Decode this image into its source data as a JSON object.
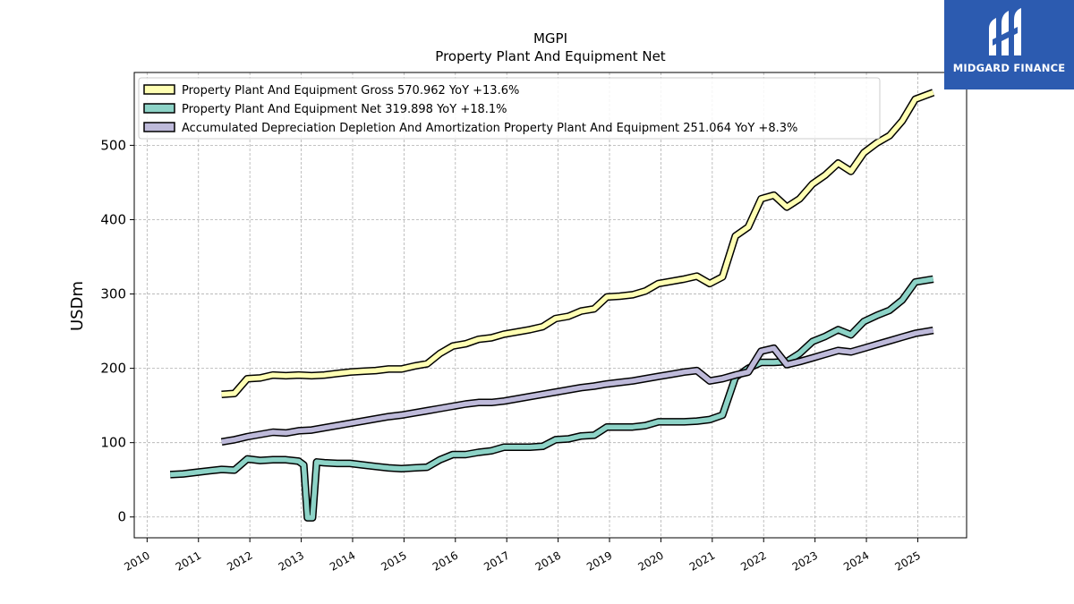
{
  "brand": {
    "name": "MIDGARD FINANCE",
    "bg": "#2c5bb0"
  },
  "chart_data": {
    "type": "line",
    "title": "MGPI",
    "subtitle": "Property Plant And Equipment Net",
    "xlabel": "",
    "ylabel": "USDm",
    "xlim": [
      2009.75,
      2025.95
    ],
    "ylim": [
      -28,
      598
    ],
    "x_ticks": [
      2010,
      2011,
      2012,
      2013,
      2014,
      2015,
      2016,
      2017,
      2018,
      2019,
      2020,
      2021,
      2022,
      2023,
      2024,
      2025
    ],
    "y_ticks": [
      0,
      100,
      200,
      300,
      400,
      500
    ],
    "grid": true,
    "legend_position": "top-left",
    "series": [
      {
        "name": "Property Plant And Equipment Gross",
        "legend": "Property Plant And Equipment Gross  570.962 YoY +13.6%",
        "color": "#ffffb3",
        "points": [
          [
            2011.45,
            165
          ],
          [
            2011.7,
            166
          ],
          [
            2011.95,
            186
          ],
          [
            2012.2,
            187
          ],
          [
            2012.45,
            191
          ],
          [
            2012.7,
            190
          ],
          [
            2012.95,
            191
          ],
          [
            2013.2,
            190
          ],
          [
            2013.45,
            191
          ],
          [
            2013.7,
            193
          ],
          [
            2013.95,
            195
          ],
          [
            2014.2,
            196
          ],
          [
            2014.45,
            197
          ],
          [
            2014.7,
            199
          ],
          [
            2014.95,
            199
          ],
          [
            2015.2,
            203
          ],
          [
            2015.45,
            206
          ],
          [
            2015.7,
            220
          ],
          [
            2015.95,
            230
          ],
          [
            2016.2,
            233
          ],
          [
            2016.45,
            239
          ],
          [
            2016.7,
            241
          ],
          [
            2016.95,
            246
          ],
          [
            2017.2,
            249
          ],
          [
            2017.45,
            252
          ],
          [
            2017.7,
            256
          ],
          [
            2017.95,
            267
          ],
          [
            2018.2,
            270
          ],
          [
            2018.45,
            277
          ],
          [
            2018.7,
            280
          ],
          [
            2018.95,
            296
          ],
          [
            2019.2,
            297
          ],
          [
            2019.45,
            299
          ],
          [
            2019.7,
            304
          ],
          [
            2019.95,
            314
          ],
          [
            2020.2,
            317
          ],
          [
            2020.45,
            320
          ],
          [
            2020.7,
            324
          ],
          [
            2020.95,
            314
          ],
          [
            2021.2,
            323
          ],
          [
            2021.45,
            378
          ],
          [
            2021.7,
            390
          ],
          [
            2021.95,
            428
          ],
          [
            2022.2,
            433
          ],
          [
            2022.45,
            417
          ],
          [
            2022.7,
            428
          ],
          [
            2022.95,
            448
          ],
          [
            2023.2,
            460
          ],
          [
            2023.45,
            476
          ],
          [
            2023.7,
            465
          ],
          [
            2023.95,
            490
          ],
          [
            2024.2,
            503
          ],
          [
            2024.45,
            513
          ],
          [
            2024.7,
            533
          ],
          [
            2024.95,
            562
          ],
          [
            2025.3,
            571
          ]
        ]
      },
      {
        "name": "Property Plant And Equipment Net",
        "legend": "Property Plant And Equipment Net  319.898 YoY +18.1%",
        "color": "#8dd3c7",
        "points": [
          [
            2010.45,
            57
          ],
          [
            2010.7,
            58
          ],
          [
            2010.95,
            60
          ],
          [
            2011.2,
            62
          ],
          [
            2011.45,
            64
          ],
          [
            2011.7,
            63
          ],
          [
            2011.95,
            78
          ],
          [
            2012.2,
            76
          ],
          [
            2012.45,
            77
          ],
          [
            2012.7,
            77
          ],
          [
            2012.95,
            75
          ],
          [
            2013.05,
            70
          ],
          [
            2013.12,
            -1
          ],
          [
            2013.22,
            -1
          ],
          [
            2013.3,
            74
          ],
          [
            2013.45,
            73
          ],
          [
            2013.7,
            72
          ],
          [
            2013.95,
            72
          ],
          [
            2014.2,
            70
          ],
          [
            2014.45,
            68
          ],
          [
            2014.7,
            66
          ],
          [
            2014.95,
            65
          ],
          [
            2015.2,
            66
          ],
          [
            2015.45,
            67
          ],
          [
            2015.7,
            77
          ],
          [
            2015.95,
            84
          ],
          [
            2016.2,
            84
          ],
          [
            2016.45,
            87
          ],
          [
            2016.7,
            89
          ],
          [
            2016.95,
            94
          ],
          [
            2017.2,
            94
          ],
          [
            2017.45,
            94
          ],
          [
            2017.7,
            95
          ],
          [
            2017.95,
            104
          ],
          [
            2018.2,
            105
          ],
          [
            2018.45,
            109
          ],
          [
            2018.7,
            110
          ],
          [
            2018.95,
            121
          ],
          [
            2019.2,
            121
          ],
          [
            2019.45,
            121
          ],
          [
            2019.7,
            123
          ],
          [
            2019.95,
            128
          ],
          [
            2020.2,
            128
          ],
          [
            2020.45,
            128
          ],
          [
            2020.7,
            129
          ],
          [
            2020.95,
            131
          ],
          [
            2021.2,
            137
          ],
          [
            2021.45,
            188
          ],
          [
            2021.7,
            200
          ],
          [
            2021.95,
            208
          ],
          [
            2022.2,
            208
          ],
          [
            2022.45,
            209
          ],
          [
            2022.7,
            220
          ],
          [
            2022.95,
            236
          ],
          [
            2023.2,
            243
          ],
          [
            2023.45,
            252
          ],
          [
            2023.7,
            245
          ],
          [
            2023.95,
            263
          ],
          [
            2024.2,
            271
          ],
          [
            2024.45,
            278
          ],
          [
            2024.7,
            292
          ],
          [
            2024.95,
            316
          ],
          [
            2025.3,
            320
          ]
        ]
      },
      {
        "name": "Accumulated Depreciation Depletion And Amortization Property Plant And Equipment",
        "legend": "Accumulated Depreciation Depletion And Amortization Property Plant And Equipment  251.064 YoY +8.3%",
        "color": "#bebada",
        "points": [
          [
            2011.45,
            101
          ],
          [
            2011.7,
            104
          ],
          [
            2011.95,
            108
          ],
          [
            2012.2,
            111
          ],
          [
            2012.45,
            114
          ],
          [
            2012.7,
            113
          ],
          [
            2012.95,
            116
          ],
          [
            2013.2,
            117
          ],
          [
            2013.45,
            120
          ],
          [
            2013.7,
            123
          ],
          [
            2013.95,
            126
          ],
          [
            2014.2,
            129
          ],
          [
            2014.45,
            132
          ],
          [
            2014.7,
            135
          ],
          [
            2014.95,
            137
          ],
          [
            2015.2,
            140
          ],
          [
            2015.45,
            143
          ],
          [
            2015.7,
            146
          ],
          [
            2015.95,
            149
          ],
          [
            2016.2,
            152
          ],
          [
            2016.45,
            154
          ],
          [
            2016.7,
            154
          ],
          [
            2016.95,
            156
          ],
          [
            2017.2,
            159
          ],
          [
            2017.45,
            162
          ],
          [
            2017.7,
            165
          ],
          [
            2017.95,
            168
          ],
          [
            2018.2,
            171
          ],
          [
            2018.45,
            174
          ],
          [
            2018.7,
            176
          ],
          [
            2018.95,
            179
          ],
          [
            2019.2,
            181
          ],
          [
            2019.45,
            183
          ],
          [
            2019.7,
            186
          ],
          [
            2019.95,
            189
          ],
          [
            2020.2,
            192
          ],
          [
            2020.45,
            195
          ],
          [
            2020.7,
            197
          ],
          [
            2020.95,
            183
          ],
          [
            2021.2,
            186
          ],
          [
            2021.45,
            191
          ],
          [
            2021.7,
            195
          ],
          [
            2021.95,
            223
          ],
          [
            2022.2,
            227
          ],
          [
            2022.45,
            205
          ],
          [
            2022.7,
            209
          ],
          [
            2022.95,
            214
          ],
          [
            2023.2,
            219
          ],
          [
            2023.45,
            224
          ],
          [
            2023.7,
            222
          ],
          [
            2023.95,
            227
          ],
          [
            2024.2,
            232
          ],
          [
            2024.45,
            237
          ],
          [
            2024.7,
            242
          ],
          [
            2024.95,
            247
          ],
          [
            2025.3,
            251
          ]
        ]
      }
    ]
  }
}
